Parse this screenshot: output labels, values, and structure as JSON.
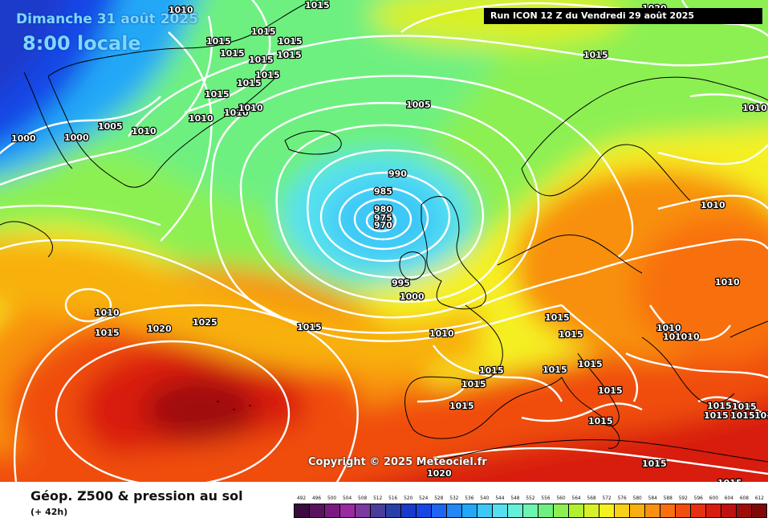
{
  "header": {
    "valid_date": "Dimanche 31 août 2025",
    "valid_hour": "8:00 locale",
    "run_info": "Run ICON 12 Z du Vendredi 29 août 2025"
  },
  "copyright": "Copyright © 2025 Meteociel.fr",
  "footer": {
    "product_title": "Géop. Z500 & pression au sol",
    "lead_time": "(+ 42h)"
  },
  "colorscale": {
    "labels": [
      "492",
      "496",
      "500",
      "504",
      "508",
      "512",
      "516",
      "520",
      "524",
      "528",
      "532",
      "536",
      "540",
      "544",
      "548",
      "552",
      "556",
      "560",
      "564",
      "568",
      "572",
      "576",
      "580",
      "584",
      "588",
      "592",
      "596",
      "600",
      "604",
      "608",
      "612"
    ],
    "colors": [
      "#3a0b3d",
      "#5a1260",
      "#7a1a80",
      "#9a2aa0",
      "#7c3aa0",
      "#4a3d9c",
      "#2a3fa8",
      "#1a3acb",
      "#1846e6",
      "#1e66f2",
      "#2288f5",
      "#22a8f7",
      "#3cc8f7",
      "#55e0f0",
      "#66f0d8",
      "#6cf5b0",
      "#6ef080",
      "#8cf052",
      "#b0f030",
      "#d8f028",
      "#f5f020",
      "#f8d018",
      "#f8b010",
      "#f89010",
      "#f87010",
      "#f04e10",
      "#e83010",
      "#d81c10",
      "#c01010",
      "#a00c0c",
      "#800808"
    ]
  },
  "isobar_labels": [
    {
      "text": "1010",
      "anchor": "1010-top-left"
    },
    {
      "text": "1015",
      "anchor": "greenland-1"
    },
    {
      "text": "1015",
      "anchor": "greenland-2"
    },
    {
      "text": "1015",
      "anchor": "greenland-3"
    },
    {
      "text": "1015",
      "anchor": "greenland-4"
    },
    {
      "text": "1015",
      "anchor": "greenland-5"
    },
    {
      "text": "1015",
      "anchor": "greenland-6"
    },
    {
      "text": "1015",
      "anchor": "greenland-7"
    },
    {
      "text": "1015",
      "anchor": "greenland-8"
    },
    {
      "text": "1015",
      "anchor": "greenland-9"
    },
    {
      "text": "1015",
      "anchor": "greenland-10"
    },
    {
      "text": "1010",
      "anchor": "greenland-11"
    },
    {
      "text": "1010",
      "anchor": "greenland-12"
    },
    {
      "text": "1010",
      "anchor": "greenland-13"
    },
    {
      "text": "1010",
      "anchor": "greenland-14"
    },
    {
      "text": "1005",
      "anchor": "greenland-15"
    },
    {
      "text": "1000",
      "anchor": "greenland-16"
    },
    {
      "text": "1000",
      "anchor": "greenland-17"
    },
    {
      "text": "1015",
      "anchor": "north-atlantic-top"
    },
    {
      "text": "1005",
      "anchor": "low-ring-outer"
    },
    {
      "text": "990",
      "anchor": "low-990"
    },
    {
      "text": "985",
      "anchor": "low-985"
    },
    {
      "text": "980",
      "anchor": "low-980"
    },
    {
      "text": "975",
      "anchor": "low-975"
    },
    {
      "text": "970",
      "anchor": "low-970"
    },
    {
      "text": "995",
      "anchor": "low-995"
    },
    {
      "text": "1000",
      "anchor": "low-1000"
    },
    {
      "text": "1010",
      "anchor": "biscay-1010"
    },
    {
      "text": "1015",
      "anchor": "mid-atlantic-1015"
    },
    {
      "text": "1010",
      "anchor": "azores-small-high"
    },
    {
      "text": "1015",
      "anchor": "azores-small-high-2"
    },
    {
      "text": "1020",
      "anchor": "azores-1020"
    },
    {
      "text": "1025",
      "anchor": "azores-1025"
    },
    {
      "text": "1010",
      "anchor": "scandinavia-1010"
    },
    {
      "text": "1010",
      "anchor": "russia-1010"
    },
    {
      "text": "1010",
      "anchor": "top-right-1010"
    },
    {
      "text": "1020",
      "anchor": "top-right-1020"
    },
    {
      "text": "1015",
      "anchor": "france-1"
    },
    {
      "text": "1015",
      "anchor": "france-2"
    },
    {
      "text": "1015",
      "anchor": "iberia-1"
    },
    {
      "text": "1015",
      "anchor": "iberia-2"
    },
    {
      "text": "1015",
      "anchor": "iberia-3"
    },
    {
      "text": "1015",
      "anchor": "italy-1"
    },
    {
      "text": "1015",
      "anchor": "italy-2"
    },
    {
      "text": "1015",
      "anchor": "italy-3"
    },
    {
      "text": "1015",
      "anchor": "balkans-1"
    },
    {
      "text": "1015",
      "anchor": "mediterranean-1"
    },
    {
      "text": "1010",
      "anchor": "central-europe-1"
    },
    {
      "text": "1010",
      "anchor": "central-europe-2"
    },
    {
      "text": "1010",
      "anchor": "central-europe-3"
    },
    {
      "text": "1015",
      "anchor": "greece-1"
    },
    {
      "text": "1015",
      "anchor": "greece-2"
    },
    {
      "text": "1015",
      "anchor": "greece-3"
    },
    {
      "text": "1015",
      "anchor": "east-med-1"
    },
    {
      "text": "1015",
      "anchor": "east-med-2"
    },
    {
      "text": "1015",
      "anchor": "bottom-1"
    },
    {
      "text": "1020",
      "anchor": "bottom-2"
    }
  ]
}
